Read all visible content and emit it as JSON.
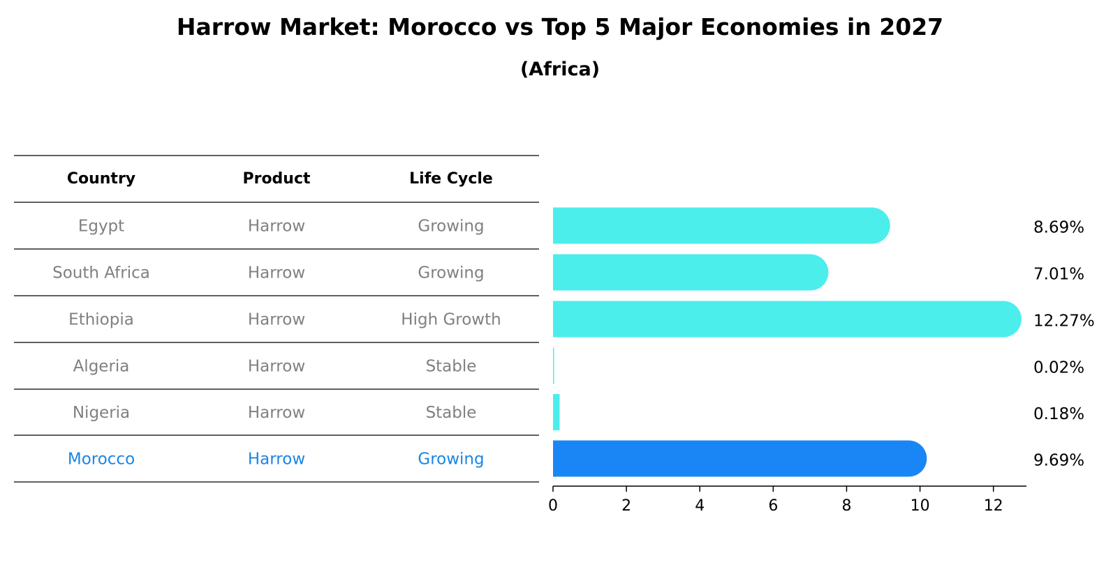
{
  "title": "Harrow Market: Morocco vs Top 5 Major Economies in 2027",
  "subtitle": "(Africa)",
  "table": {
    "headers": [
      "Country",
      "Product",
      "Life Cycle"
    ],
    "rows": [
      [
        "Egypt",
        "Harrow",
        "Growing"
      ],
      [
        "South Africa",
        "Harrow",
        "Growing"
      ],
      [
        "Ethiopia",
        "Harrow",
        "High Growth"
      ],
      [
        "Algeria",
        "Harrow",
        "Stable"
      ],
      [
        "Nigeria",
        "Harrow",
        "Stable"
      ],
      [
        "Morocco",
        "Harrow",
        "Growing"
      ]
    ],
    "highlight_row": 5
  },
  "chart_data": {
    "type": "bar",
    "orientation": "horizontal",
    "categories": [
      "Egypt",
      "South Africa",
      "Ethiopia",
      "Algeria",
      "Nigeria",
      "Morocco"
    ],
    "values": [
      8.69,
      7.01,
      12.27,
      0.02,
      0.18,
      9.69
    ],
    "value_labels": [
      "8.69%",
      "7.01%",
      "12.27%",
      "0.02%",
      "0.18%",
      "9.69%"
    ],
    "xticks": [
      0,
      2,
      4,
      6,
      8,
      10,
      12
    ],
    "xlim": [
      0,
      12.9
    ],
    "grid": false
  },
  "colors": {
    "bar": "#4beeeb",
    "highlight_bar": "#1a86f5",
    "highlight_text": "#1a86e3",
    "cell_text": "#808080"
  }
}
